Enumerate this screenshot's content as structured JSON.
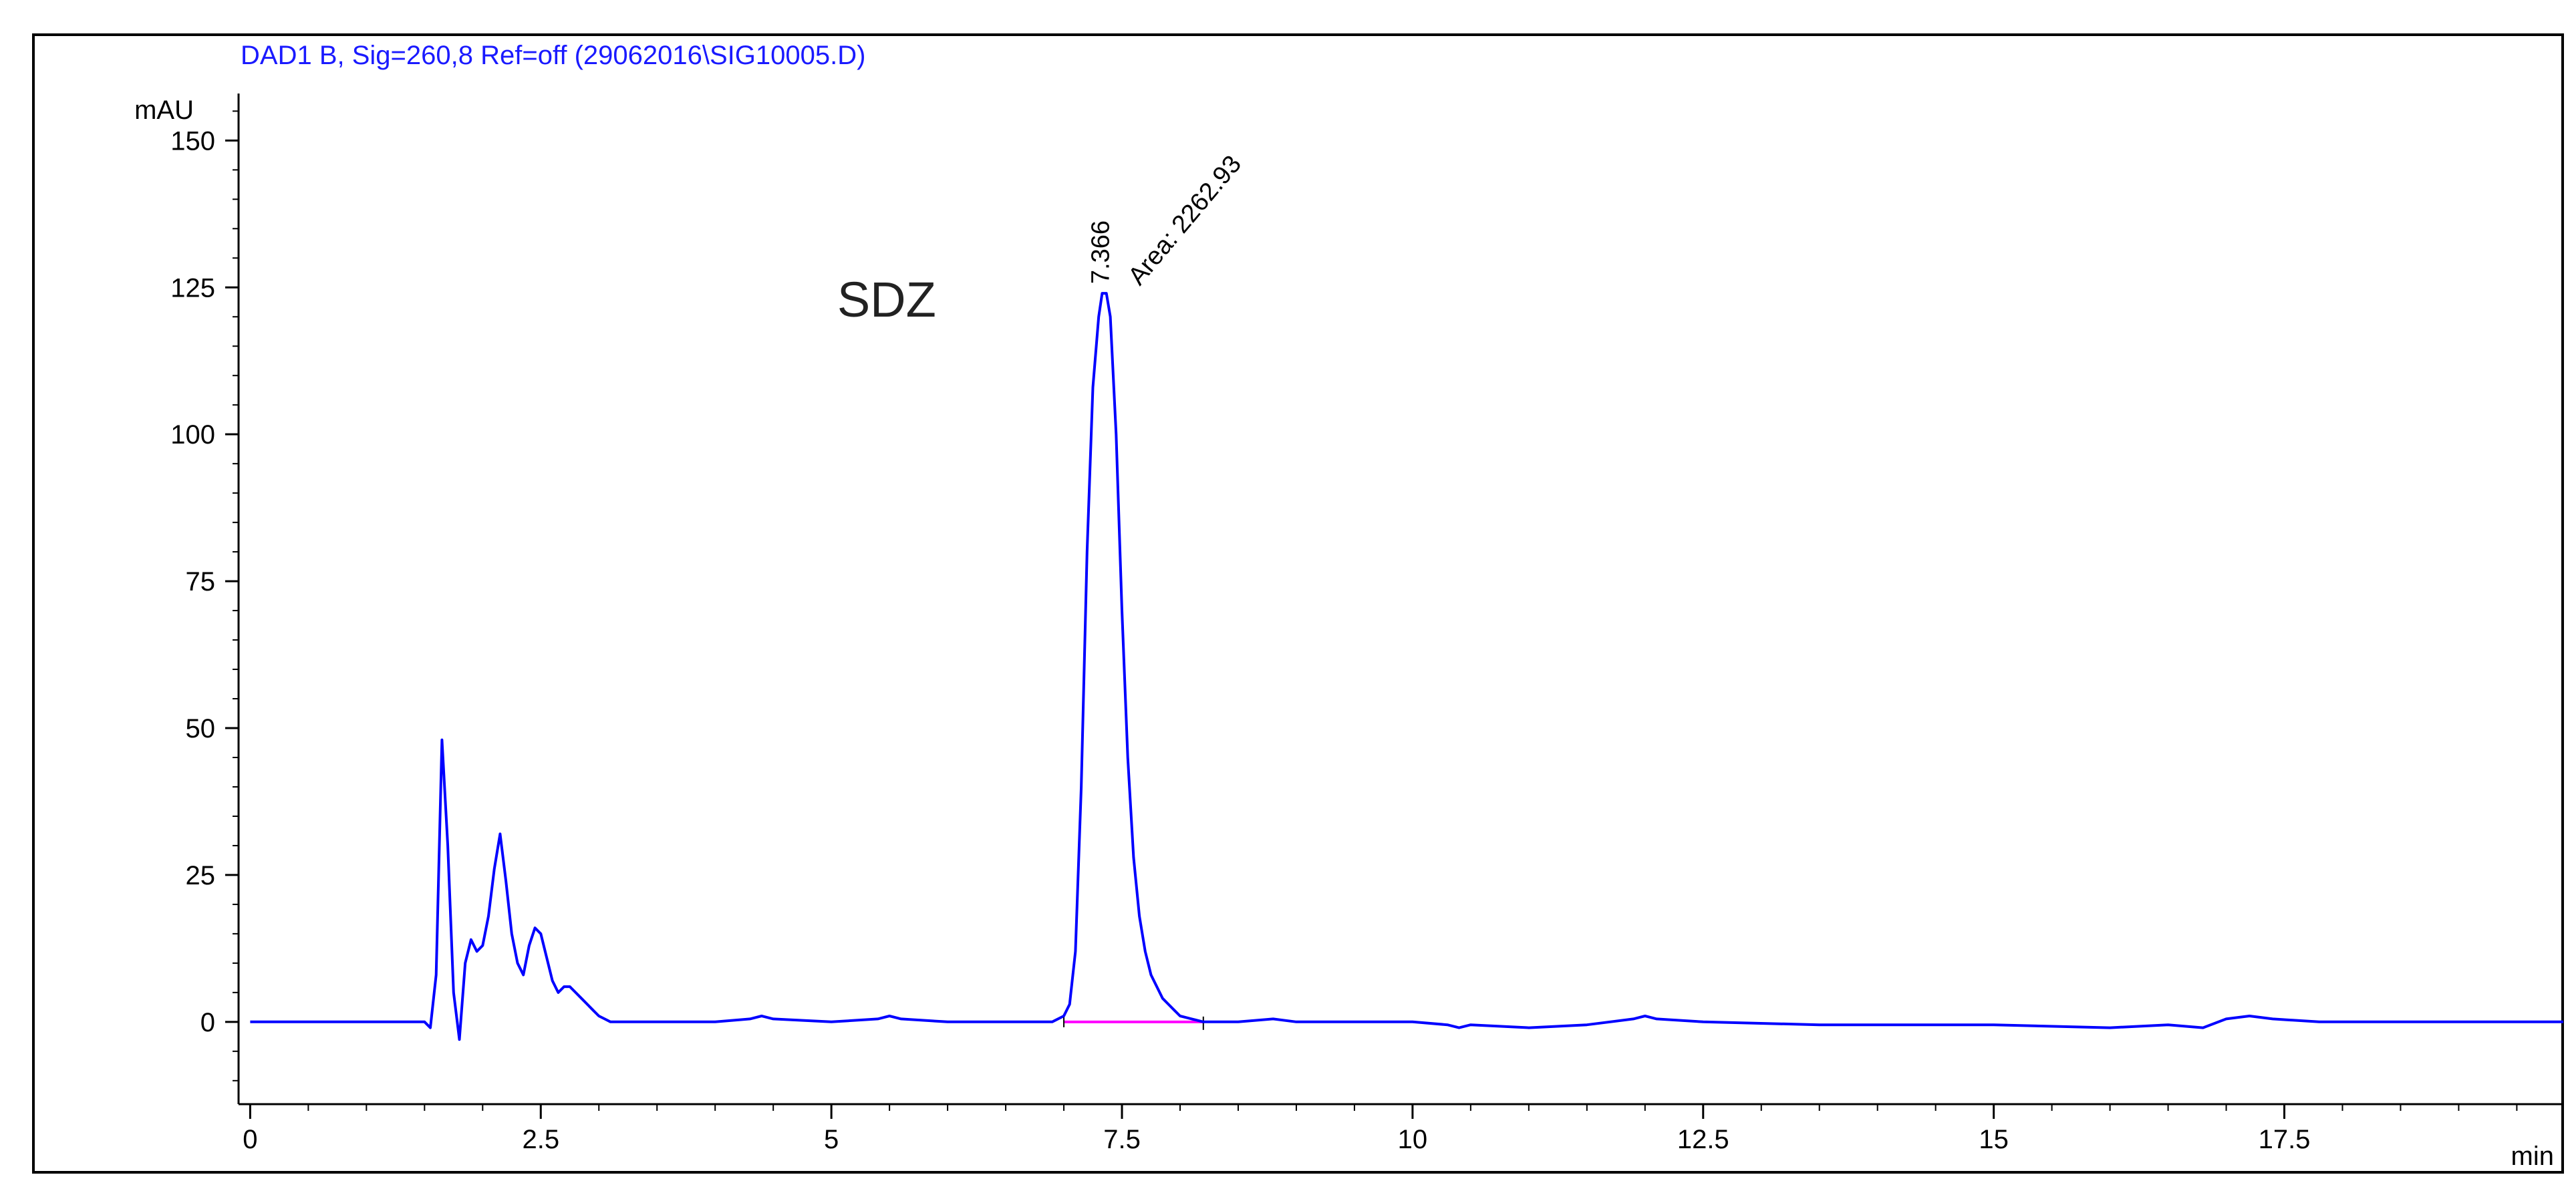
{
  "header": {
    "signal_title": "DAD1 B, Sig=260,8 Ref=off (29062016\\SIG10005.D)"
  },
  "colors": {
    "trace": "#0000ff",
    "baseline": "#ff00ff",
    "axis": "#000000",
    "title": "#1a1aff"
  },
  "chart_data": {
    "type": "line",
    "title": "DAD1 B, Sig=260,8 Ref=off (29062016\\SIG10005.D)",
    "xlabel": "min",
    "ylabel": "mAU",
    "xlim": [
      -0.1,
      19.9
    ],
    "ylim": [
      -14,
      168
    ],
    "x_ticks": [
      0,
      2.5,
      5,
      7.5,
      10,
      12.5,
      15,
      17.5
    ],
    "x_tick_labels": [
      "0",
      "2.5",
      "5",
      "7.5",
      "10",
      "12.5",
      "15",
      "17.5"
    ],
    "x_minor_step": 0.5,
    "y_ticks": [
      0,
      25,
      50,
      75,
      100,
      125,
      150
    ],
    "y_tick_labels": [
      "0",
      "25",
      "50",
      "75",
      "100",
      "125",
      "150"
    ],
    "y_minor_step": 5,
    "grid": false,
    "series": [
      {
        "x": [
          0,
          1.0,
          1.5,
          1.55,
          1.6,
          1.65,
          1.7,
          1.75,
          1.8,
          1.85,
          1.9,
          1.95,
          2.0,
          2.05,
          2.1,
          2.15,
          2.2,
          2.25,
          2.3,
          2.35,
          2.4,
          2.45,
          2.5,
          2.55,
          2.6,
          2.65,
          2.7,
          2.75,
          2.8,
          2.85,
          2.9,
          2.95,
          3.0,
          3.05,
          3.1,
          3.2,
          3.5,
          4.0,
          4.3,
          4.4,
          4.5,
          5.0,
          5.4,
          5.5,
          5.6,
          6.0,
          6.5,
          6.9,
          7.0,
          7.05,
          7.1,
          7.15,
          7.2,
          7.25,
          7.3,
          7.33,
          7.366,
          7.4,
          7.45,
          7.5,
          7.55,
          7.6,
          7.65,
          7.7,
          7.75,
          7.8,
          7.85,
          7.9,
          7.95,
          8.0,
          8.1,
          8.2,
          8.5,
          8.8,
          9.0,
          10.0,
          10.3,
          10.4,
          10.5,
          11.0,
          11.5,
          11.9,
          12.0,
          12.1,
          12.5,
          13.5,
          14.2,
          15.0,
          16.0,
          16.5,
          16.8,
          17.0,
          17.2,
          17.4,
          17.8,
          18.5,
          19.9
        ],
        "y": [
          0,
          0,
          0,
          -1,
          8,
          48,
          30,
          5,
          -3,
          10,
          14,
          12,
          13,
          18,
          26,
          32,
          24,
          15,
          10,
          8,
          13,
          16,
          15,
          11,
          7,
          5,
          6,
          6,
          5,
          4,
          3,
          2,
          1,
          0.5,
          0,
          0,
          0,
          0,
          0.5,
          1,
          0.5,
          0,
          0.5,
          1,
          0.5,
          0,
          0,
          0,
          1,
          3,
          12,
          40,
          80,
          108,
          120,
          124,
          124,
          120,
          100,
          70,
          45,
          28,
          18,
          12,
          8,
          6,
          4,
          3,
          2,
          1,
          0.5,
          0,
          0,
          0.5,
          0,
          0,
          -0.5,
          -1,
          -0.5,
          -1,
          -0.5,
          0.5,
          1,
          0.5,
          0,
          -0.5,
          -0.5,
          -0.5,
          -1,
          -0.5,
          -1,
          0.5,
          1,
          0.5,
          0,
          0,
          0
        ]
      }
    ],
    "baseline_segment": {
      "x": [
        7.0,
        8.2
      ],
      "y": [
        0,
        0
      ]
    },
    "annotations": {
      "peak_time": "7.366",
      "peak_area": "Area: 2262.93",
      "compound": "SDZ"
    }
  }
}
